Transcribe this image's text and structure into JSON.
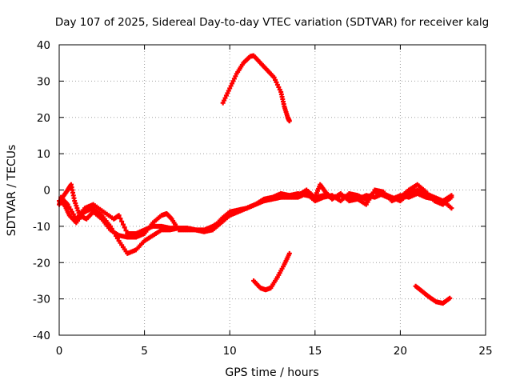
{
  "chart_data": {
    "type": "scatter",
    "title": "Day 107 of 2025, Sidereal Day-to-day VTEC variation (SDTVAR) for receiver kalg",
    "xlabel": "GPS time / hours",
    "ylabel": "SDTVAR / TECUs",
    "xlim": [
      0,
      25
    ],
    "ylim": [
      -40,
      40
    ],
    "x_ticks": [
      0,
      5,
      10,
      15,
      20,
      25
    ],
    "y_ticks": [
      -40,
      -30,
      -20,
      -10,
      0,
      10,
      20,
      30,
      40
    ],
    "grid": true,
    "marker_color": "#ff0000",
    "series": [
      {
        "name": "main-band-a",
        "points": [
          [
            0.0,
            -3
          ],
          [
            0.3,
            -4
          ],
          [
            0.6,
            -7
          ],
          [
            1.0,
            -9
          ],
          [
            1.5,
            -6
          ],
          [
            2.0,
            -5
          ],
          [
            2.5,
            -7
          ],
          [
            3.0,
            -10
          ],
          [
            3.5,
            -14
          ],
          [
            4.0,
            -17.5
          ],
          [
            4.5,
            -16.5
          ],
          [
            5.0,
            -14
          ],
          [
            5.5,
            -12.5
          ],
          [
            6.0,
            -11
          ],
          [
            6.5,
            -11
          ],
          [
            7.0,
            -10.5
          ],
          [
            7.5,
            -10.5
          ],
          [
            8.0,
            -11
          ],
          [
            8.5,
            -11.5
          ],
          [
            9.0,
            -10.5
          ],
          [
            9.5,
            -8
          ],
          [
            10.0,
            -6
          ],
          [
            10.5,
            -5.5
          ],
          [
            11.0,
            -5
          ],
          [
            11.5,
            -4
          ],
          [
            12.0,
            -3
          ],
          [
            12.5,
            -2.5
          ],
          [
            13.0,
            -2
          ],
          [
            13.5,
            -1.5
          ],
          [
            14.0,
            -1
          ],
          [
            14.5,
            -1.5
          ],
          [
            15.0,
            -2
          ],
          [
            15.5,
            -1.5
          ],
          [
            16.0,
            -2
          ],
          [
            16.5,
            -1.5
          ],
          [
            17.0,
            -2
          ],
          [
            17.5,
            -2.5
          ],
          [
            18.0,
            -1.5
          ],
          [
            18.5,
            -2
          ],
          [
            19.0,
            -1
          ],
          [
            19.5,
            -2
          ],
          [
            20.0,
            -3
          ],
          [
            20.5,
            -1
          ],
          [
            21.0,
            0
          ],
          [
            21.5,
            -1
          ],
          [
            22.0,
            -2
          ],
          [
            22.5,
            -3
          ],
          [
            23.0,
            -5
          ]
        ]
      },
      {
        "name": "main-band-b",
        "points": [
          [
            0.0,
            -4
          ],
          [
            0.2,
            -2
          ],
          [
            0.5,
            0
          ],
          [
            0.7,
            1.5
          ],
          [
            0.9,
            -3
          ],
          [
            1.2,
            -7
          ],
          [
            1.6,
            -8
          ],
          [
            2.0,
            -6
          ],
          [
            2.5,
            -8
          ],
          [
            3.0,
            -11
          ],
          [
            3.5,
            -12.5
          ],
          [
            4.0,
            -13
          ],
          [
            4.5,
            -13
          ],
          [
            5.0,
            -12
          ],
          [
            5.5,
            -9
          ],
          [
            6.0,
            -7
          ],
          [
            6.3,
            -6.5
          ],
          [
            6.6,
            -8
          ],
          [
            7.0,
            -11
          ],
          [
            7.5,
            -11
          ],
          [
            8.0,
            -11
          ],
          [
            8.5,
            -11.5
          ],
          [
            9.0,
            -11
          ],
          [
            9.5,
            -9
          ],
          [
            10.0,
            -7
          ],
          [
            10.5,
            -6
          ],
          [
            11.0,
            -5
          ],
          [
            11.5,
            -4
          ],
          [
            12.0,
            -2.5
          ],
          [
            12.5,
            -2
          ],
          [
            13.0,
            -1
          ],
          [
            13.5,
            -1.5
          ],
          [
            14.0,
            -1.5
          ],
          [
            14.5,
            0
          ],
          [
            15.0,
            -2
          ],
          [
            15.3,
            1.5
          ],
          [
            15.6,
            -0.5
          ],
          [
            16.0,
            -2.5
          ],
          [
            16.5,
            -1
          ],
          [
            17.0,
            -3
          ],
          [
            17.5,
            -2.5
          ],
          [
            18.0,
            -4
          ],
          [
            18.5,
            0
          ],
          [
            19.0,
            -0.5
          ],
          [
            19.5,
            -3
          ],
          [
            20.0,
            -2
          ],
          [
            20.5,
            0
          ],
          [
            21.0,
            1.5
          ],
          [
            21.5,
            -0.5
          ],
          [
            22.0,
            -3
          ],
          [
            22.5,
            -4
          ],
          [
            23.0,
            -2
          ]
        ]
      },
      {
        "name": "main-band-c",
        "points": [
          [
            0.1,
            -2
          ],
          [
            0.5,
            -4
          ],
          [
            1.0,
            -8
          ],
          [
            1.5,
            -5
          ],
          [
            2.0,
            -4
          ],
          [
            2.6,
            -6
          ],
          [
            3.2,
            -8
          ],
          [
            3.5,
            -7
          ],
          [
            4.0,
            -12
          ],
          [
            4.5,
            -12
          ],
          [
            5.0,
            -11
          ],
          [
            5.5,
            -10
          ],
          [
            6.0,
            -10
          ],
          [
            6.5,
            -10.5
          ],
          [
            7.0,
            -10.5
          ],
          [
            7.5,
            -10.5
          ],
          [
            8.0,
            -11
          ],
          [
            8.5,
            -11
          ],
          [
            9.0,
            -10
          ],
          [
            9.5,
            -8.5
          ],
          [
            10.0,
            -6.5
          ],
          [
            10.5,
            -5.5
          ],
          [
            11.0,
            -5
          ],
          [
            11.5,
            -4
          ],
          [
            12.0,
            -3
          ],
          [
            12.5,
            -2.5
          ],
          [
            13.0,
            -2
          ],
          [
            13.5,
            -2
          ],
          [
            14.0,
            -2
          ],
          [
            14.5,
            -1
          ],
          [
            15.0,
            -3
          ],
          [
            15.5,
            -2
          ],
          [
            16.0,
            -1.5
          ],
          [
            16.5,
            -3
          ],
          [
            17.0,
            -1
          ],
          [
            17.5,
            -1.5
          ],
          [
            18.0,
            -2.5
          ],
          [
            18.5,
            -0.5
          ],
          [
            19.0,
            -1.5
          ],
          [
            19.5,
            -2.5
          ],
          [
            20.0,
            -1.5
          ],
          [
            20.5,
            -2
          ],
          [
            21.0,
            -1
          ],
          [
            21.5,
            -2
          ],
          [
            22.0,
            -2.5
          ],
          [
            22.5,
            -3
          ],
          [
            23.0,
            -1.5
          ]
        ]
      },
      {
        "name": "upper-arc",
        "points": [
          [
            9.6,
            24
          ],
          [
            10.0,
            28
          ],
          [
            10.4,
            32
          ],
          [
            10.8,
            35
          ],
          [
            11.2,
            36.8
          ],
          [
            11.4,
            37
          ],
          [
            11.8,
            35
          ],
          [
            12.2,
            33
          ],
          [
            12.6,
            31
          ],
          [
            13.0,
            27
          ],
          [
            13.2,
            23
          ],
          [
            13.4,
            20
          ],
          [
            13.5,
            19
          ]
        ]
      },
      {
        "name": "lower-arc-mid",
        "points": [
          [
            11.4,
            -25
          ],
          [
            11.8,
            -27
          ],
          [
            12.1,
            -27.5
          ],
          [
            12.4,
            -27
          ],
          [
            12.8,
            -24
          ],
          [
            13.2,
            -20.5
          ],
          [
            13.5,
            -17.5
          ]
        ]
      },
      {
        "name": "lower-arc-late",
        "points": [
          [
            20.9,
            -26.5
          ],
          [
            21.3,
            -28
          ],
          [
            21.7,
            -29.5
          ],
          [
            22.1,
            -30.8
          ],
          [
            22.5,
            -31.2
          ],
          [
            22.9,
            -29.8
          ]
        ]
      }
    ]
  }
}
